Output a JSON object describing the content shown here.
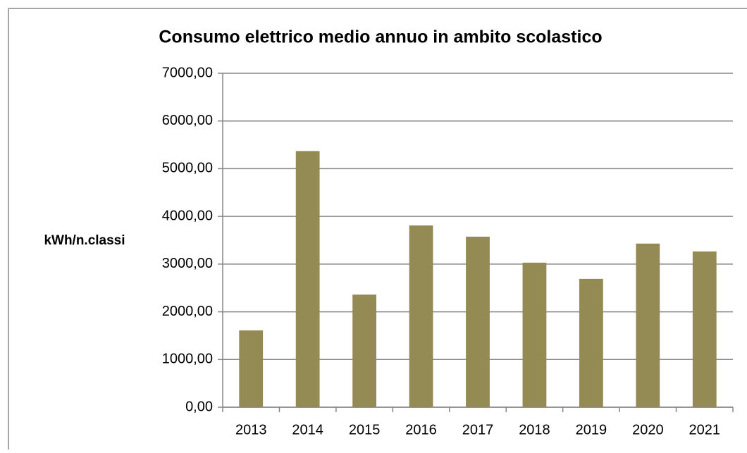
{
  "chart_data": {
    "type": "bar",
    "title": "Consumo elettrico medio annuo in ambito scolastico",
    "y_label": "kWh/n.classi",
    "categories": [
      "2013",
      "2014",
      "2015",
      "2016",
      "2017",
      "2018",
      "2019",
      "2020",
      "2021"
    ],
    "values": [
      1610,
      5370,
      2360,
      3810,
      3575,
      3030,
      2690,
      3430,
      3265
    ],
    "color": "#948a54",
    "ylim": [
      0,
      7000
    ],
    "yticks": [
      {
        "value": 0,
        "label": "0,00"
      },
      {
        "value": 1000,
        "label": "1000,00"
      },
      {
        "value": 2000,
        "label": "2000,00"
      },
      {
        "value": 3000,
        "label": "3000,00"
      },
      {
        "value": 4000,
        "label": "4000,00"
      },
      {
        "value": 5000,
        "label": "5000,00"
      },
      {
        "value": 6000,
        "label": "6000,00"
      },
      {
        "value": 7000,
        "label": "7000,00"
      }
    ],
    "grid": true
  }
}
